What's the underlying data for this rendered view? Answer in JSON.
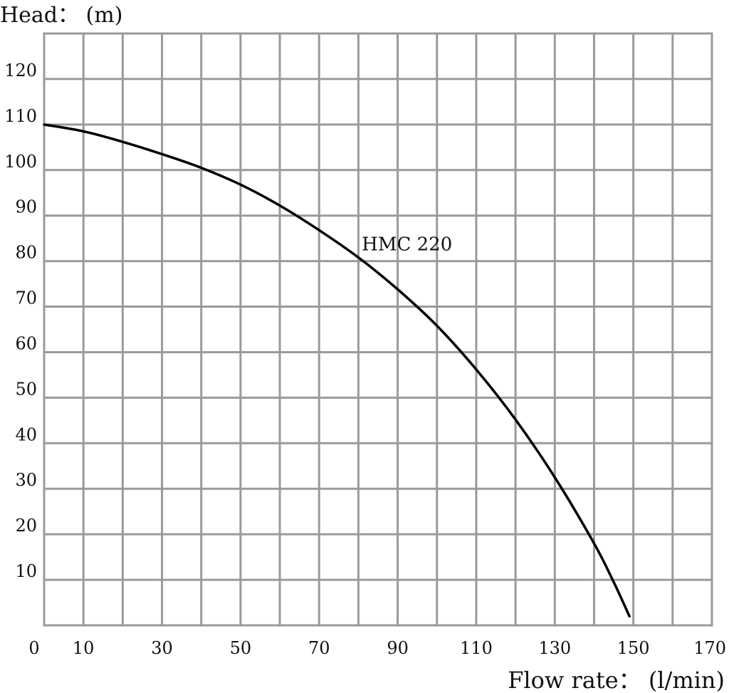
{
  "chart_data": {
    "type": "line",
    "ylabel": "Head： (m)",
    "xlabel": "Flow rate： (l/min)",
    "xlim": [
      0,
      170
    ],
    "ylim": [
      0,
      130
    ],
    "x_ticks": [
      0,
      10,
      30,
      50,
      70,
      90,
      110,
      130,
      150,
      170
    ],
    "y_ticks": [
      10,
      20,
      30,
      40,
      50,
      60,
      70,
      80,
      90,
      100,
      110,
      120
    ],
    "x_tick_labels": [
      "0",
      "10",
      "30",
      "50",
      "70",
      "90",
      "110",
      "130",
      "150",
      "170"
    ],
    "y_tick_labels": [
      "10",
      "20",
      "30",
      "40",
      "50",
      "60",
      "70",
      "80",
      "90",
      "100",
      "110",
      "120"
    ],
    "x_grid_step": 10,
    "y_grid_step": 10,
    "grid": true,
    "series": [
      {
        "name": "HMC 220",
        "color": "#000000",
        "x": [
          0,
          10,
          20,
          30,
          40,
          50,
          60,
          70,
          80,
          90,
          100,
          110,
          120,
          130,
          140,
          145,
          149
        ],
        "y": [
          110,
          108.5,
          106.2,
          103.5,
          100.5,
          96.8,
          92.2,
          86.8,
          80.8,
          73.8,
          65.8,
          56.2,
          45.2,
          32.5,
          18,
          9.5,
          2
        ]
      }
    ],
    "annotation": {
      "text": "HMC 220",
      "x": 80.5,
      "y": 80.5
    }
  }
}
